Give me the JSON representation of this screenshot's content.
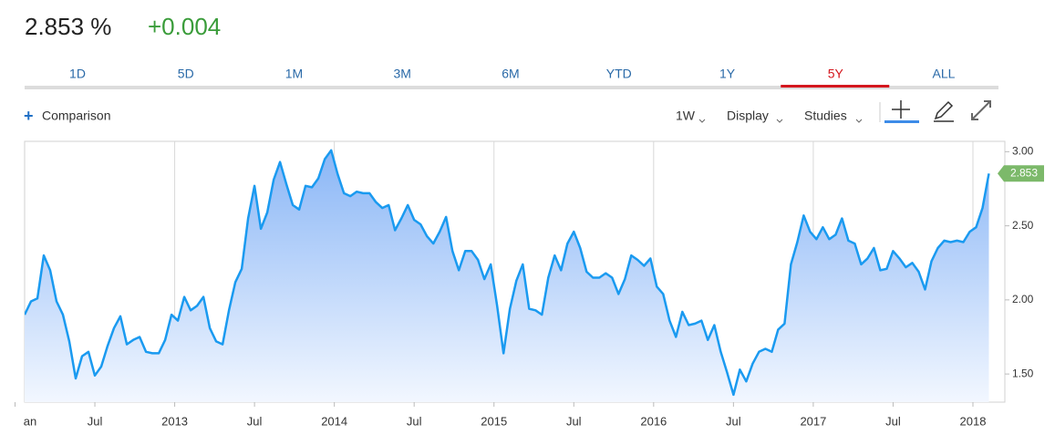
{
  "header": {
    "price": "2.853 %",
    "change": "+0.004"
  },
  "tabs": [
    "1D",
    "5D",
    "1M",
    "3M",
    "6M",
    "YTD",
    "1Y",
    "5Y",
    "ALL"
  ],
  "active_tab": 7,
  "toolbar": {
    "comparison": "Comparison",
    "interval": "1W",
    "display": "Display",
    "studies": "Studies"
  },
  "chart_data": {
    "type": "area",
    "x": [
      2012.06,
      2012.1,
      2012.14,
      2012.18,
      2012.22,
      2012.26,
      2012.3,
      2012.34,
      2012.38,
      2012.42,
      2012.46,
      2012.5,
      2012.54,
      2012.58,
      2012.62,
      2012.66,
      2012.7,
      2012.74,
      2012.78,
      2012.82,
      2012.86,
      2012.9,
      2012.94,
      2012.98,
      2013.02,
      2013.06,
      2013.1,
      2013.14,
      2013.18,
      2013.22,
      2013.26,
      2013.3,
      2013.34,
      2013.38,
      2013.42,
      2013.46,
      2013.5,
      2013.54,
      2013.58,
      2013.62,
      2013.66,
      2013.7,
      2013.74,
      2013.78,
      2013.82,
      2013.86,
      2013.9,
      2013.94,
      2013.98,
      2014.02,
      2014.06,
      2014.1,
      2014.14,
      2014.18,
      2014.22,
      2014.26,
      2014.3,
      2014.34,
      2014.38,
      2014.42,
      2014.46,
      2014.5,
      2014.54,
      2014.58,
      2014.62,
      2014.66,
      2014.7,
      2014.74,
      2014.78,
      2014.82,
      2014.86,
      2014.9,
      2014.94,
      2014.98,
      2015.02,
      2015.06,
      2015.1,
      2015.14,
      2015.18,
      2015.22,
      2015.26,
      2015.3,
      2015.34,
      2015.38,
      2015.42,
      2015.46,
      2015.5,
      2015.54,
      2015.58,
      2015.62,
      2015.66,
      2015.7,
      2015.74,
      2015.78,
      2015.82,
      2015.86,
      2015.9,
      2015.94,
      2015.98,
      2016.02,
      2016.06,
      2016.1,
      2016.14,
      2016.18,
      2016.22,
      2016.26,
      2016.3,
      2016.34,
      2016.38,
      2016.42,
      2016.46,
      2016.5,
      2016.54,
      2016.58,
      2016.62,
      2016.66,
      2016.7,
      2016.74,
      2016.78,
      2016.82,
      2016.86,
      2016.9,
      2016.94,
      2016.98,
      2017.02,
      2017.06,
      2017.1,
      2017.14,
      2017.18,
      2017.22,
      2017.26,
      2017.3,
      2017.34,
      2017.38,
      2017.42,
      2017.46,
      2017.5,
      2017.54,
      2017.58,
      2017.62,
      2017.66,
      2017.7,
      2017.74,
      2017.78,
      2017.82,
      2017.86,
      2017.9,
      2017.94,
      2017.98,
      2018.02,
      2018.06,
      2018.1
    ],
    "series": [
      {
        "color": "#1a9af0",
        "values": [
          1.9,
          1.99,
          2.01,
          2.3,
          2.2,
          1.99,
          1.9,
          1.72,
          1.47,
          1.62,
          1.65,
          1.49,
          1.55,
          1.69,
          1.81,
          1.89,
          1.7,
          1.73,
          1.75,
          1.65,
          1.64,
          1.64,
          1.73,
          1.9,
          1.86,
          2.02,
          1.93,
          1.96,
          2.02,
          1.81,
          1.72,
          1.7,
          1.93,
          2.12,
          2.21,
          2.55,
          2.77,
          2.48,
          2.59,
          2.81,
          2.93,
          2.78,
          2.64,
          2.61,
          2.77,
          2.76,
          2.82,
          2.95,
          3.01,
          2.85,
          2.72,
          2.7,
          2.73,
          2.72,
          2.72,
          2.66,
          2.62,
          2.64,
          2.47,
          2.55,
          2.64,
          2.54,
          2.51,
          2.43,
          2.38,
          2.46,
          2.56,
          2.33,
          2.2,
          2.33,
          2.33,
          2.27,
          2.14,
          2.24,
          1.96,
          1.64,
          1.94,
          2.13,
          2.24,
          1.94,
          1.93,
          1.9,
          2.15,
          2.3,
          2.2,
          2.38,
          2.46,
          2.35,
          2.19,
          2.15,
          2.15,
          2.18,
          2.15,
          2.04,
          2.14,
          2.3,
          2.27,
          2.23,
          2.28,
          2.09,
          2.04,
          1.86,
          1.75,
          1.92,
          1.83,
          1.84,
          1.86,
          1.73,
          1.83,
          1.65,
          1.51,
          1.36,
          1.53,
          1.45,
          1.57,
          1.65,
          1.67,
          1.65,
          1.8,
          1.84,
          2.24,
          2.39,
          2.57,
          2.46,
          2.41,
          2.49,
          2.41,
          2.44,
          2.55,
          2.4,
          2.38,
          2.24,
          2.28,
          2.35,
          2.2,
          2.21,
          2.33,
          2.28,
          2.22,
          2.25,
          2.19,
          2.07,
          2.26,
          2.35,
          2.4,
          2.39,
          2.4,
          2.39,
          2.46,
          2.49,
          2.62,
          2.853
        ]
      }
    ],
    "xlim": [
      2012.06,
      2018.2
    ],
    "ylim": [
      1.31,
      3.07
    ],
    "xticks": [
      {
        "value": 2012,
        "label": "an"
      },
      {
        "value": 2012.5,
        "label": "Jul"
      },
      2013,
      {
        "value": 2013.5,
        "label": "Jul"
      },
      2014,
      {
        "value": 2014.5,
        "label": "Jul"
      },
      2015,
      {
        "value": 2015.5,
        "label": "Jul"
      },
      2016,
      {
        "value": 2016.5,
        "label": "Jul"
      },
      2017,
      {
        "value": 2017.5,
        "label": "Jul"
      },
      2018
    ],
    "yticks": [
      {
        "value": 3,
        "label": "3.00"
      },
      {
        "value": 2.5,
        "label": "2.50"
      },
      {
        "value": 2,
        "label": "2.00"
      },
      {
        "value": 1.5,
        "label": "1.50"
      }
    ],
    "last_value_color": "#7cb96a"
  }
}
